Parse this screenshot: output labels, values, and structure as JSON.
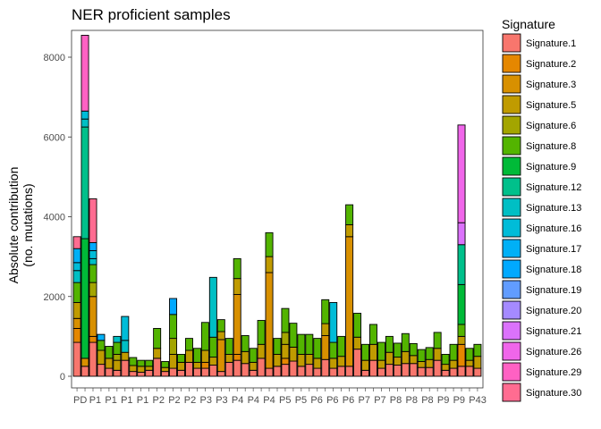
{
  "chart_data": {
    "type": "bar",
    "stacked": true,
    "title": "NER proficient samples",
    "xlabel": "",
    "ylabel_lines": [
      "Absolute contribution",
      "(no. mutations)"
    ],
    "ylim": [
      0,
      8700
    ],
    "yticks": [
      0,
      2000,
      4000,
      6000,
      8000
    ],
    "grid": false,
    "legend": {
      "title": "Signature",
      "placement": "right"
    },
    "x_tick_label_fragments": [
      "PD",
      "P1",
      "P1",
      "P1",
      "P1",
      "P2",
      "P2",
      "P2",
      "P3",
      "P3",
      "P4",
      "P4",
      "P4",
      "P5",
      "P5",
      "P6",
      "P6",
      "P6",
      "P7",
      "P7",
      "P8",
      "P8",
      "P8",
      "P9",
      "P9",
      "P43"
    ],
    "signatures": [
      "Signature.1",
      "Signature.2",
      "Signature.3",
      "Signature.5",
      "Signature.6",
      "Signature.8",
      "Signature.9",
      "Signature.12",
      "Signature.13",
      "Signature.16",
      "Signature.17",
      "Signature.18",
      "Signature.19",
      "Signature.20",
      "Signature.21",
      "Signature.26",
      "Signature.29",
      "Signature.30"
    ],
    "colors": [
      "#F8766D",
      "#E58700",
      "#D89000",
      "#C09B00",
      "#A3A500",
      "#53B400",
      "#00BA38",
      "#00C08B",
      "#00BFC4",
      "#00BCD8",
      "#00B0F6",
      "#00A9FF",
      "#619CFF",
      "#A58AFF",
      "#DB72FB",
      "#F066EA",
      "#FF61C3",
      "#FF6C91"
    ],
    "series": [
      {
        "name": "Signature.1",
        "values": [
          850,
          250,
          850,
          300,
          200,
          150,
          400,
          120,
          100,
          150,
          450,
          120,
          200,
          150,
          350,
          200,
          200,
          280,
          120,
          350,
          400,
          320,
          150,
          450,
          200,
          250,
          300,
          380,
          250,
          300,
          200,
          420,
          200,
          250,
          250,
          680,
          150,
          400,
          200,
          300,
          280,
          320,
          320,
          220,
          220,
          400,
          150,
          200,
          250,
          250,
          200
        ]
      },
      {
        "name": "Signature.2",
        "values": [
          350,
          0,
          150,
          0,
          0,
          0,
          0,
          0,
          0,
          0,
          0,
          0,
          0,
          0,
          0,
          0,
          150,
          0,
          0,
          0,
          150,
          0,
          0,
          0,
          0,
          0,
          150,
          0,
          0,
          0,
          0,
          0,
          0,
          0,
          0,
          0,
          0,
          0,
          0,
          0,
          0,
          0,
          0,
          0,
          0,
          0,
          0,
          0,
          550,
          0,
          0
        ]
      },
      {
        "name": "Signature.3",
        "values": [
          250,
          200,
          1000,
          0,
          0,
          0,
          0,
          0,
          0,
          0,
          0,
          0,
          0,
          0,
          0,
          0,
          0,
          0,
          800,
          0,
          1500,
          0,
          0,
          0,
          2400,
          0,
          0,
          0,
          0,
          0,
          0,
          600,
          0,
          0,
          3250,
          0,
          0,
          0,
          0,
          0,
          0,
          0,
          0,
          0,
          0,
          0,
          0,
          0,
          0,
          0,
          0
        ]
      },
      {
        "name": "Signature.5",
        "values": [
          400,
          0,
          0,
          350,
          250,
          250,
          200,
          150,
          150,
          100,
          250,
          100,
          350,
          200,
          300,
          150,
          300,
          200,
          200,
          200,
          400,
          300,
          200,
          350,
          400,
          300,
          350,
          350,
          300,
          250,
          250,
          300,
          250,
          250,
          300,
          300,
          250,
          400,
          200,
          300,
          200,
          300,
          200,
          150,
          200,
          300,
          150,
          200,
          200,
          150,
          300
        ]
      },
      {
        "name": "Signature.6",
        "values": [
          0,
          0,
          350,
          0,
          0,
          150,
          0,
          0,
          0,
          0,
          0,
          0,
          400,
          0,
          0,
          0,
          0,
          0,
          0,
          0,
          0,
          0,
          0,
          0,
          0,
          0,
          300,
          0,
          0,
          0,
          0,
          0,
          0,
          0,
          0,
          0,
          0,
          0,
          0,
          0,
          0,
          0,
          0,
          0,
          0,
          0,
          0,
          0,
          0,
          0,
          0
        ]
      },
      {
        "name": "Signature.8",
        "values": [
          500,
          0,
          450,
          250,
          300,
          300,
          0,
          200,
          150,
          150,
          500,
          150,
          600,
          200,
          300,
          350,
          700,
          500,
          300,
          400,
          500,
          400,
          350,
          600,
          600,
          400,
          600,
          600,
          500,
          500,
          500,
          600,
          400,
          500,
          500,
          600,
          400,
          500,
          450,
          400,
          350,
          450,
          300,
          300,
          300,
          400,
          250,
          400,
          300,
          300,
          300
        ]
      },
      {
        "name": "Signature.9",
        "values": [
          0,
          3000,
          0,
          0,
          0,
          0,
          0,
          0,
          0,
          0,
          0,
          0,
          0,
          0,
          0,
          0,
          0,
          0,
          0,
          0,
          0,
          0,
          0,
          0,
          0,
          0,
          0,
          0,
          0,
          0,
          0,
          0,
          0,
          0,
          0,
          0,
          0,
          0,
          0,
          0,
          0,
          0,
          0,
          0,
          0,
          0,
          0,
          0,
          1000,
          0,
          0
        ]
      },
      {
        "name": "Signature.12",
        "values": [
          0,
          2800,
          0,
          0,
          0,
          0,
          0,
          0,
          0,
          0,
          0,
          0,
          0,
          0,
          0,
          0,
          0,
          0,
          0,
          0,
          0,
          0,
          0,
          0,
          0,
          0,
          0,
          0,
          0,
          0,
          0,
          0,
          0,
          0,
          0,
          0,
          0,
          0,
          0,
          0,
          0,
          0,
          0,
          0,
          0,
          0,
          0,
          0,
          1000,
          0,
          0
        ]
      },
      {
        "name": "Signature.13",
        "values": [
          300,
          200,
          150,
          0,
          0,
          150,
          300,
          0,
          0,
          0,
          0,
          0,
          0,
          0,
          0,
          0,
          0,
          1500,
          0,
          0,
          0,
          0,
          0,
          0,
          0,
          0,
          0,
          0,
          0,
          0,
          0,
          0,
          0,
          0,
          0,
          0,
          0,
          0,
          0,
          0,
          0,
          0,
          0,
          0,
          0,
          0,
          0,
          0,
          0,
          0,
          0
        ]
      },
      {
        "name": "Signature.16",
        "values": [
          200,
          200,
          200,
          0,
          0,
          0,
          600,
          0,
          0,
          0,
          0,
          0,
          0,
          0,
          0,
          0,
          0,
          0,
          0,
          0,
          0,
          0,
          0,
          0,
          0,
          0,
          0,
          0,
          0,
          0,
          0,
          0,
          1000,
          0,
          0,
          0,
          0,
          0,
          0,
          0,
          0,
          0,
          0,
          0,
          0,
          0,
          0,
          0,
          0,
          0,
          0
        ]
      },
      {
        "name": "Signature.17",
        "values": [
          350,
          0,
          0,
          150,
          0,
          0,
          0,
          0,
          0,
          0,
          0,
          0,
          0,
          0,
          0,
          0,
          0,
          0,
          0,
          0,
          0,
          0,
          0,
          0,
          0,
          0,
          0,
          0,
          0,
          0,
          0,
          0,
          0,
          0,
          0,
          0,
          0,
          0,
          0,
          0,
          0,
          0,
          0,
          0,
          0,
          0,
          0,
          0,
          0,
          0,
          0
        ]
      },
      {
        "name": "Signature.18",
        "values": [
          0,
          0,
          200,
          0,
          0,
          0,
          0,
          0,
          0,
          0,
          0,
          0,
          400,
          0,
          0,
          0,
          0,
          0,
          0,
          0,
          0,
          0,
          0,
          0,
          0,
          0,
          0,
          0,
          0,
          0,
          0,
          0,
          0,
          0,
          0,
          0,
          0,
          0,
          0,
          0,
          0,
          0,
          0,
          0,
          0,
          0,
          0,
          0,
          0,
          0,
          0
        ]
      },
      {
        "name": "Signature.19",
        "values": [
          0,
          0,
          0,
          0,
          0,
          0,
          0,
          0,
          0,
          0,
          0,
          0,
          0,
          0,
          0,
          0,
          0,
          0,
          0,
          0,
          0,
          0,
          0,
          0,
          0,
          0,
          0,
          0,
          0,
          0,
          0,
          0,
          0,
          0,
          0,
          0,
          0,
          0,
          0,
          0,
          0,
          0,
          0,
          0,
          0,
          0,
          0,
          0,
          0,
          0,
          0
        ]
      },
      {
        "name": "Signature.20",
        "values": [
          0,
          0,
          0,
          0,
          0,
          0,
          0,
          0,
          0,
          0,
          0,
          0,
          0,
          0,
          0,
          0,
          0,
          0,
          0,
          0,
          0,
          0,
          0,
          0,
          0,
          0,
          0,
          0,
          0,
          0,
          0,
          0,
          0,
          0,
          0,
          0,
          0,
          0,
          0,
          0,
          0,
          0,
          0,
          0,
          0,
          0,
          0,
          0,
          0,
          0,
          0
        ]
      },
      {
        "name": "Signature.21",
        "values": [
          0,
          0,
          0,
          0,
          0,
          0,
          0,
          0,
          0,
          0,
          0,
          0,
          0,
          0,
          0,
          0,
          0,
          0,
          0,
          0,
          0,
          0,
          0,
          0,
          0,
          0,
          0,
          0,
          0,
          0,
          0,
          0,
          0,
          0,
          0,
          0,
          0,
          0,
          0,
          0,
          0,
          0,
          0,
          0,
          0,
          0,
          0,
          0,
          550,
          0,
          0
        ]
      },
      {
        "name": "Signature.26",
        "values": [
          0,
          0,
          0,
          0,
          0,
          0,
          0,
          0,
          0,
          0,
          0,
          0,
          0,
          0,
          0,
          0,
          0,
          0,
          0,
          0,
          0,
          0,
          0,
          0,
          0,
          0,
          0,
          0,
          0,
          0,
          0,
          0,
          0,
          0,
          0,
          0,
          0,
          0,
          0,
          0,
          0,
          0,
          0,
          0,
          0,
          0,
          0,
          0,
          2450,
          0,
          0
        ]
      },
      {
        "name": "Signature.29",
        "values": [
          0,
          1900,
          0,
          0,
          0,
          0,
          0,
          0,
          0,
          0,
          0,
          0,
          0,
          0,
          0,
          0,
          0,
          0,
          0,
          0,
          0,
          0,
          0,
          0,
          0,
          0,
          0,
          0,
          0,
          0,
          0,
          0,
          0,
          0,
          0,
          0,
          0,
          0,
          0,
          0,
          0,
          0,
          0,
          0,
          0,
          0,
          0,
          0,
          0,
          0,
          0
        ]
      },
      {
        "name": "Signature.30",
        "values": [
          300,
          0,
          1100,
          0,
          0,
          0,
          0,
          0,
          0,
          0,
          0,
          0,
          0,
          0,
          0,
          0,
          0,
          0,
          0,
          0,
          0,
          0,
          0,
          0,
          0,
          0,
          0,
          0,
          0,
          0,
          0,
          0,
          0,
          0,
          0,
          0,
          0,
          0,
          0,
          0,
          0,
          0,
          0,
          0,
          0,
          0,
          0,
          0,
          0,
          0,
          0
        ]
      }
    ]
  }
}
